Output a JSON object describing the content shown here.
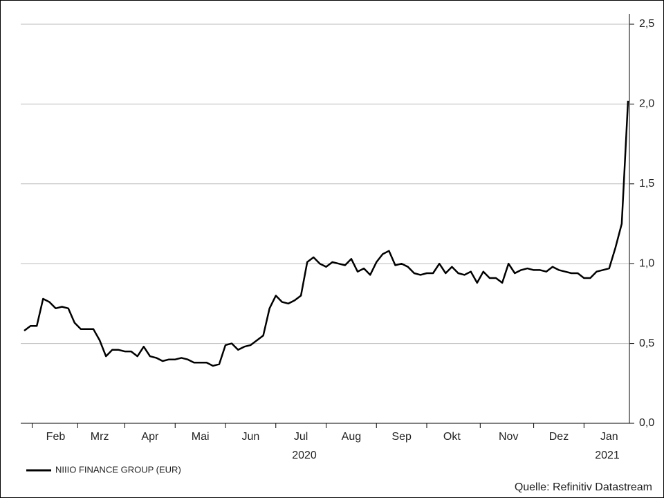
{
  "chart_data": {
    "type": "line",
    "series": [
      {
        "name": "NIIIO FINANCE GROUP (EUR)",
        "color": "#000000",
        "values": [
          0.58,
          0.61,
          0.61,
          0.78,
          0.76,
          0.72,
          0.73,
          0.72,
          0.63,
          0.59,
          0.59,
          0.59,
          0.52,
          0.42,
          0.46,
          0.46,
          0.45,
          0.45,
          0.42,
          0.48,
          0.42,
          0.41,
          0.39,
          0.4,
          0.4,
          0.41,
          0.4,
          0.38,
          0.38,
          0.38,
          0.36,
          0.37,
          0.49,
          0.5,
          0.46,
          0.48,
          0.49,
          0.52,
          0.55,
          0.72,
          0.8,
          0.76,
          0.75,
          0.77,
          0.8,
          1.01,
          1.04,
          1.0,
          0.98,
          1.01,
          1.0,
          0.99,
          1.03,
          0.95,
          0.97,
          0.93,
          1.01,
          1.06,
          1.08,
          0.99,
          1.0,
          0.98,
          0.94,
          0.93,
          0.94,
          0.94,
          1.0,
          0.94,
          0.98,
          0.94,
          0.93,
          0.95,
          0.88,
          0.95,
          0.91,
          0.91,
          0.88,
          1.0,
          0.94,
          0.96,
          0.97,
          0.96,
          0.96,
          0.95,
          0.98,
          0.96,
          0.95,
          0.94,
          0.94,
          0.91,
          0.91,
          0.95,
          0.96,
          0.97,
          1.1,
          1.25,
          2.02
        ]
      }
    ],
    "categories": [
      null,
      null,
      null,
      null,
      null,
      "Feb",
      null,
      null,
      null,
      null,
      null,
      null,
      "Mrz",
      null,
      null,
      null,
      null,
      null,
      null,
      null,
      "Apr",
      null,
      null,
      null,
      null,
      null,
      null,
      null,
      "Mai",
      null,
      null,
      null,
      null,
      null,
      null,
      null,
      "Jun",
      null,
      null,
      null,
      null,
      null,
      null,
      null,
      "Jul",
      null,
      null,
      null,
      null,
      null,
      null,
      null,
      "Aug",
      null,
      null,
      null,
      null,
      null,
      null,
      null,
      "Sep",
      null,
      null,
      null,
      null,
      null,
      null,
      null,
      "Okt",
      null,
      null,
      null,
      null,
      null,
      null,
      null,
      null,
      "Nov",
      null,
      null,
      null,
      null,
      null,
      null,
      null,
      "Dez",
      null,
      null,
      null,
      null,
      null,
      null,
      null,
      "Jan",
      null,
      null,
      null
    ],
    "years": [
      "2020",
      "2021"
    ],
    "ylim": [
      0,
      2.5
    ],
    "yticks": [
      {
        "value": 0,
        "label": "0,0"
      },
      {
        "value": 0.5,
        "label": "0,5"
      },
      {
        "value": 1,
        "label": "1,0"
      },
      {
        "value": 1.5,
        "label": "1,5"
      },
      {
        "value": 2,
        "label": "2,0"
      },
      {
        "value": 2.5,
        "label": "2,5"
      }
    ],
    "grid": true,
    "source": "Quelle: Refinitiv Datastream"
  }
}
